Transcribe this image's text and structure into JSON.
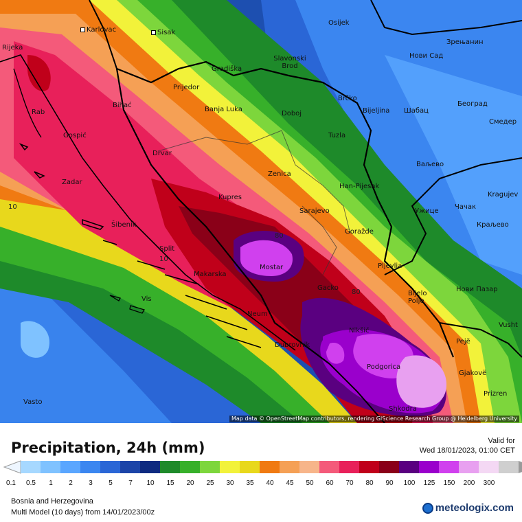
{
  "map": {
    "attribution": "Map data © OpenStreetMap contributors, rendering GIScience Research Group @ Heidelberg University",
    "contour_labels": [
      "10",
      "80",
      "80",
      "10"
    ],
    "cities": [
      {
        "name": "Karlovac"
      },
      {
        "name": "Sisak"
      },
      {
        "name": "Osijek"
      },
      {
        "name": "Зрењанин"
      },
      {
        "name": "Rijeka"
      },
      {
        "name": "Gradiška"
      },
      {
        "name": "Slavonski\nBrod"
      },
      {
        "name": "Нови Сад"
      },
      {
        "name": "Prijedor"
      },
      {
        "name": "Brčko"
      },
      {
        "name": "Bihać"
      },
      {
        "name": "Banja Luka"
      },
      {
        "name": "Bijeljina"
      },
      {
        "name": "Шабац"
      },
      {
        "name": "Београд"
      },
      {
        "name": "Rab"
      },
      {
        "name": "Doboj"
      },
      {
        "name": "Смедер"
      },
      {
        "name": "Gospić"
      },
      {
        "name": "Tuzla"
      },
      {
        "name": "Drvar"
      },
      {
        "name": "Ваљево"
      },
      {
        "name": "Zenica"
      },
      {
        "name": "Zadar"
      },
      {
        "name": "Han-Pijesak"
      },
      {
        "name": "Kragujev"
      },
      {
        "name": "Kupres"
      },
      {
        "name": "Чачак"
      },
      {
        "name": "Sarajevo"
      },
      {
        "name": "Ужице"
      },
      {
        "name": "Šibenik"
      },
      {
        "name": "Goražde"
      },
      {
        "name": "Краљево"
      },
      {
        "name": "Split"
      },
      {
        "name": "Mostar"
      },
      {
        "name": "Pljevlja"
      },
      {
        "name": "Makarska"
      },
      {
        "name": "Gacko"
      },
      {
        "name": "Bijelo\nPolje"
      },
      {
        "name": "Нови Пазар"
      },
      {
        "name": "Vis"
      },
      {
        "name": "Neum"
      },
      {
        "name": "Vusht"
      },
      {
        "name": "Nikšić"
      },
      {
        "name": "Dubrovnik"
      },
      {
        "name": "Pejë"
      },
      {
        "name": "Podgorica"
      },
      {
        "name": "Gjakovë"
      },
      {
        "name": "Prizren"
      },
      {
        "name": "Vasto"
      },
      {
        "name": "Shkodra"
      }
    ]
  },
  "header": {
    "title": "Precipitation, 24h (mm)",
    "valid_label": "Valid for",
    "valid_time": "Wed 18/01/2023, 01:00 CET"
  },
  "legend": {
    "ticks": [
      "0.1",
      "0.5",
      "1",
      "2",
      "3",
      "5",
      "7",
      "10",
      "15",
      "20",
      "25",
      "30",
      "35",
      "40",
      "45",
      "50",
      "60",
      "70",
      "80",
      "90",
      "100",
      "125",
      "150",
      "200",
      "300"
    ],
    "colors": [
      "#a6d8ff",
      "#7fc2ff",
      "#5aa6ff",
      "#3b86f0",
      "#2a66d6",
      "#1b44a8",
      "#0e2a80",
      "#1e8a2a",
      "#37b02a",
      "#7dd63c",
      "#f2f23a",
      "#e8d81c",
      "#f07a12",
      "#f5a055",
      "#f7b58a",
      "#f45a7a",
      "#e8205a",
      "#c0001a",
      "#8a0018",
      "#5a0080",
      "#9a00cc",
      "#d040ee",
      "#e8a0f0",
      "#f4d8f4",
      "#cfcfcf"
    ],
    "colors_note": ""
  },
  "footer": {
    "region": "Bosnia and Herzegovina",
    "model": "Multi Model (10 days) from  14/01/2023/00z",
    "brand": "meteologix.com"
  }
}
